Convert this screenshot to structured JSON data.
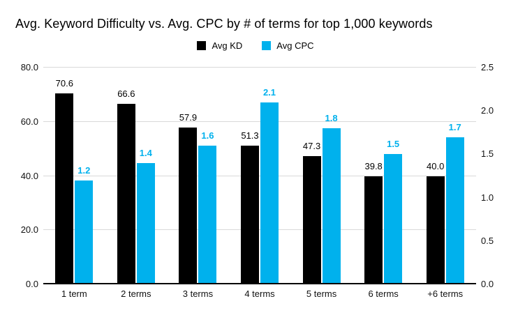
{
  "colors": {
    "kd_black": "#000000",
    "cpc_cyan": "#00b1ed",
    "gridline": "#d9d9d9",
    "axis_baseline": "#000000",
    "text": "#000000"
  },
  "chart_data": {
    "type": "bar",
    "title": "Avg. Keyword Difficulty vs. Avg. CPC by # of terms for top 1,000 keywords",
    "categories": [
      "1 term",
      "2 terms",
      "3 terms",
      "4 terms",
      "5 terms",
      "6 terms",
      "+6 terms"
    ],
    "series": [
      {
        "name": "Avg KD",
        "axis": "left",
        "color": "#000000",
        "values": [
          70.6,
          66.6,
          57.9,
          51.3,
          47.3,
          39.8,
          40.0
        ],
        "labels": [
          "70.6",
          "66.6",
          "57.9",
          "51.3",
          "47.3",
          "39.8",
          "40.0"
        ]
      },
      {
        "name": "Avg CPC",
        "axis": "right",
        "color": "#00b1ed",
        "values": [
          1.2,
          1.4,
          1.6,
          2.1,
          1.8,
          1.5,
          1.7
        ],
        "labels": [
          "1.2",
          "1.4",
          "1.6",
          "2.1",
          "1.8",
          "1.5",
          "1.7"
        ]
      }
    ],
    "left_axis": {
      "min": 0,
      "max": 80,
      "ticks": [
        "0.0",
        "20.0",
        "40.0",
        "60.0",
        "80.0"
      ]
    },
    "right_axis": {
      "min": 0,
      "max": 2.5,
      "ticks": [
        "0.0",
        "0.5",
        "1.0",
        "1.5",
        "2.0",
        "2.5"
      ]
    },
    "grid": true,
    "legend_position": "top",
    "xlabel": "",
    "ylabel_left": "",
    "ylabel_right": ""
  }
}
